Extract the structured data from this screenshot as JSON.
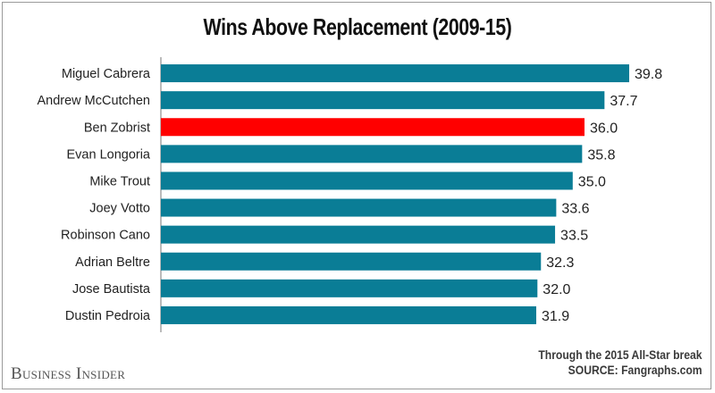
{
  "chart_data": {
    "type": "bar",
    "orientation": "horizontal",
    "title": "Wins Above Replacement (2009-15)",
    "categories": [
      "Miguel Cabrera",
      "Andrew McCutchen",
      "Ben Zobrist",
      "Evan Longoria",
      "Mike Trout",
      "Joey Votto",
      "Robinson Cano",
      "Adrian Beltre",
      "Jose Bautista",
      "Dustin Pedroia"
    ],
    "values": [
      39.8,
      37.7,
      36.0,
      35.8,
      35.0,
      33.6,
      33.5,
      32.3,
      32.0,
      31.9
    ],
    "value_labels": [
      "39.8",
      "37.7",
      "36.0",
      "35.8",
      "35.0",
      "33.6",
      "33.5",
      "32.3",
      "32.0",
      "31.9"
    ],
    "highlight": "Ben Zobrist",
    "xlim": [
      0,
      39.8
    ],
    "grid": false,
    "bar_color": "#0a7d96",
    "highlight_color": "#ff0000"
  },
  "footer": {
    "brand": "Business Insider",
    "note_line1": "Through the 2015 All-Star break",
    "note_line2": "SOURCE: Fangraphs.com"
  }
}
